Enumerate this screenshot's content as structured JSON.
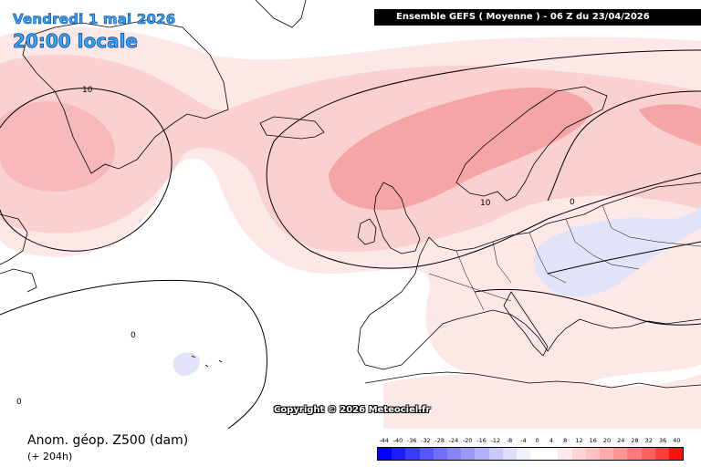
{
  "title": {
    "date": "Vendredi 1 mai 2026",
    "time": "20:00 locale"
  },
  "header": {
    "model_run": "Ensemble GEFS  ( Moyenne )  -  06 Z du 23/04/2026"
  },
  "copyright": "Copyright © 2026 Meteociel.fr",
  "variable_label": "Anom. géop. Z500 (dam)",
  "lead_time": "(+ 204h)",
  "contour_labels": [
    "10",
    "10",
    "0",
    "0",
    "0"
  ],
  "colors": {
    "land_coast": "#000000",
    "pos_light": "#fde8e8",
    "pos_medium": "#fbd0d0",
    "pos_strong": "#f5a5a5",
    "neg_light": "#e1e4f8",
    "title_blue": "#33a6ff"
  },
  "scale": {
    "ticks": [
      "-44",
      "-40",
      "-36",
      "-32",
      "-28",
      "-24",
      "-20",
      "-16",
      "-12",
      "-8",
      "-4",
      "0",
      "4",
      "8",
      "12",
      "16",
      "20",
      "24",
      "28",
      "32",
      "36",
      "40"
    ],
    "colors": [
      "#0000ff",
      "#1d1dff",
      "#3a3aff",
      "#5656ff",
      "#6f6ff8",
      "#8585f6",
      "#9b9bf6",
      "#b2b2f8",
      "#c8c8fa",
      "#dedefc",
      "#f0f0ff",
      "#ffffff",
      "#ffffff",
      "#ffe9e9",
      "#ffd4d4",
      "#ffc0c0",
      "#ffabab",
      "#ff9595",
      "#ff7b7b",
      "#ff6060",
      "#ff3d3d",
      "#ff1010"
    ]
  }
}
